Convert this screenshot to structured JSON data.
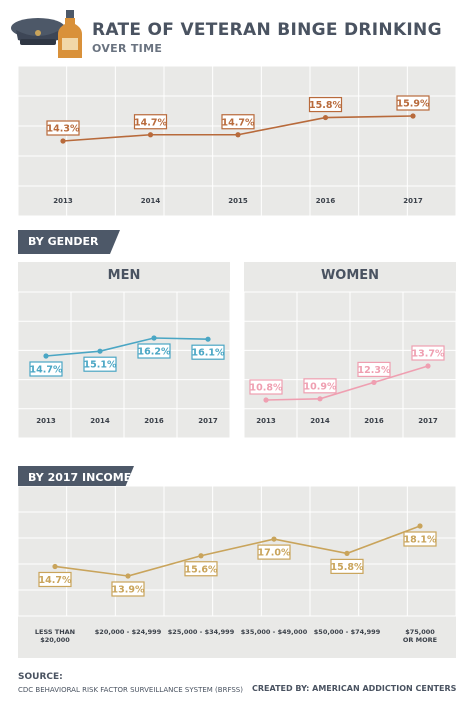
{
  "header": {
    "title": "RATE OF VETERAN BINGE DRINKING",
    "subtitle": "OVER TIME"
  },
  "colors": {
    "overall": "#b86a3b",
    "men": "#4aa6c4",
    "women": "#ef9fb1",
    "income": "#c9a45b",
    "banner": "#4d5868",
    "panel": "#e9e9e7",
    "grid": "#ffffff"
  },
  "sections": {
    "gender": "BY GENDER",
    "income": "BY 2017 INCOME",
    "men": "MEN",
    "women": "WOMEN"
  },
  "chart_data": [
    {
      "type": "line",
      "x": [
        "2013",
        "2014",
        "2015",
        "2016",
        "2017"
      ],
      "values": [
        14.3,
        14.7,
        14.7,
        15.8,
        15.9
      ],
      "labels": [
        "14.3%",
        "14.7%",
        "14.7%",
        "15.8%",
        "15.9%"
      ]
    },
    {
      "type": "line",
      "title": "MEN",
      "x": [
        "2013",
        "2014",
        "2016",
        "2017"
      ],
      "values": [
        14.7,
        15.1,
        16.2,
        16.1
      ],
      "labels": [
        "14.7%",
        "15.1%",
        "16.2%",
        "16.1%"
      ]
    },
    {
      "type": "line",
      "title": "WOMEN",
      "x": [
        "2013",
        "2014",
        "2016",
        "2017"
      ],
      "values": [
        10.8,
        10.9,
        12.3,
        13.7
      ],
      "labels": [
        "10.8%",
        "10.9%",
        "12.3%",
        "13.7%"
      ]
    },
    {
      "type": "line",
      "title": "BY 2017 INCOME",
      "x": [
        [
          "LESS THAN",
          "$20,000"
        ],
        [
          "$20,000 - $24,999"
        ],
        [
          "$25,000 - $34,999"
        ],
        [
          "$35,000 - $49,000"
        ],
        [
          "$50,000 - $74,999"
        ],
        [
          "$75,000",
          "OR MORE"
        ]
      ],
      "values": [
        14.7,
        13.9,
        15.6,
        17.0,
        15.8,
        18.1
      ],
      "labels": [
        "14.7%",
        "13.9%",
        "15.6%",
        "17.0%",
        "15.8%",
        "18.1%"
      ]
    }
  ],
  "footer": {
    "source_label": "SOURCE:",
    "source_text": "CDC BEHAVIORAL RISK FACTOR SURVEILLANCE SYSTEM (BRFSS)",
    "credit": "CREATED BY: AMERICAN ADDICTION CENTERS"
  }
}
